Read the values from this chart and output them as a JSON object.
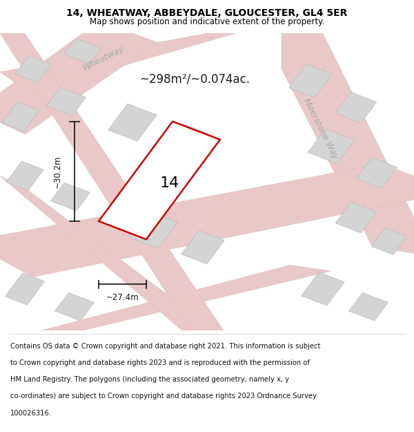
{
  "title_line1": "14, WHEATWAY, ABBEYDALE, GLOUCESTER, GL4 5ER",
  "title_line2": "Map shows position and indicative extent of the property.",
  "area_label": "~298m²/~0.074ac.",
  "width_label": "~27.4m",
  "height_label": "~30.2m",
  "number_label": "14",
  "street_label_1": "Wheatway",
  "street_label_2": "Meerstone Way",
  "footer_lines": [
    "Contains OS data © Crown copyright and database right 2021. This information is subject",
    "to Crown copyright and database rights 2023 and is reproduced with the permission of",
    "HM Land Registry. The polygons (including the associated geometry, namely x, y",
    "co-ordinates) are subject to Crown copyright and database rights 2023 Ordnance Survey",
    "100026316."
  ],
  "map_bg_color": "#eeecec",
  "road_fill": "#e8c8c8",
  "road_edge": "#dbb8b8",
  "block_fill": "#d4d4d4",
  "block_edge": "#bbbbbb",
  "property_fill": "#ffffff",
  "property_edge": "#cc0000",
  "dim_color": "#111111",
  "street_color": "#aaaaaa",
  "area_color": "#1a1a1a",
  "title_color": "#000000",
  "footer_color": "#111111",
  "white": "#ffffff"
}
